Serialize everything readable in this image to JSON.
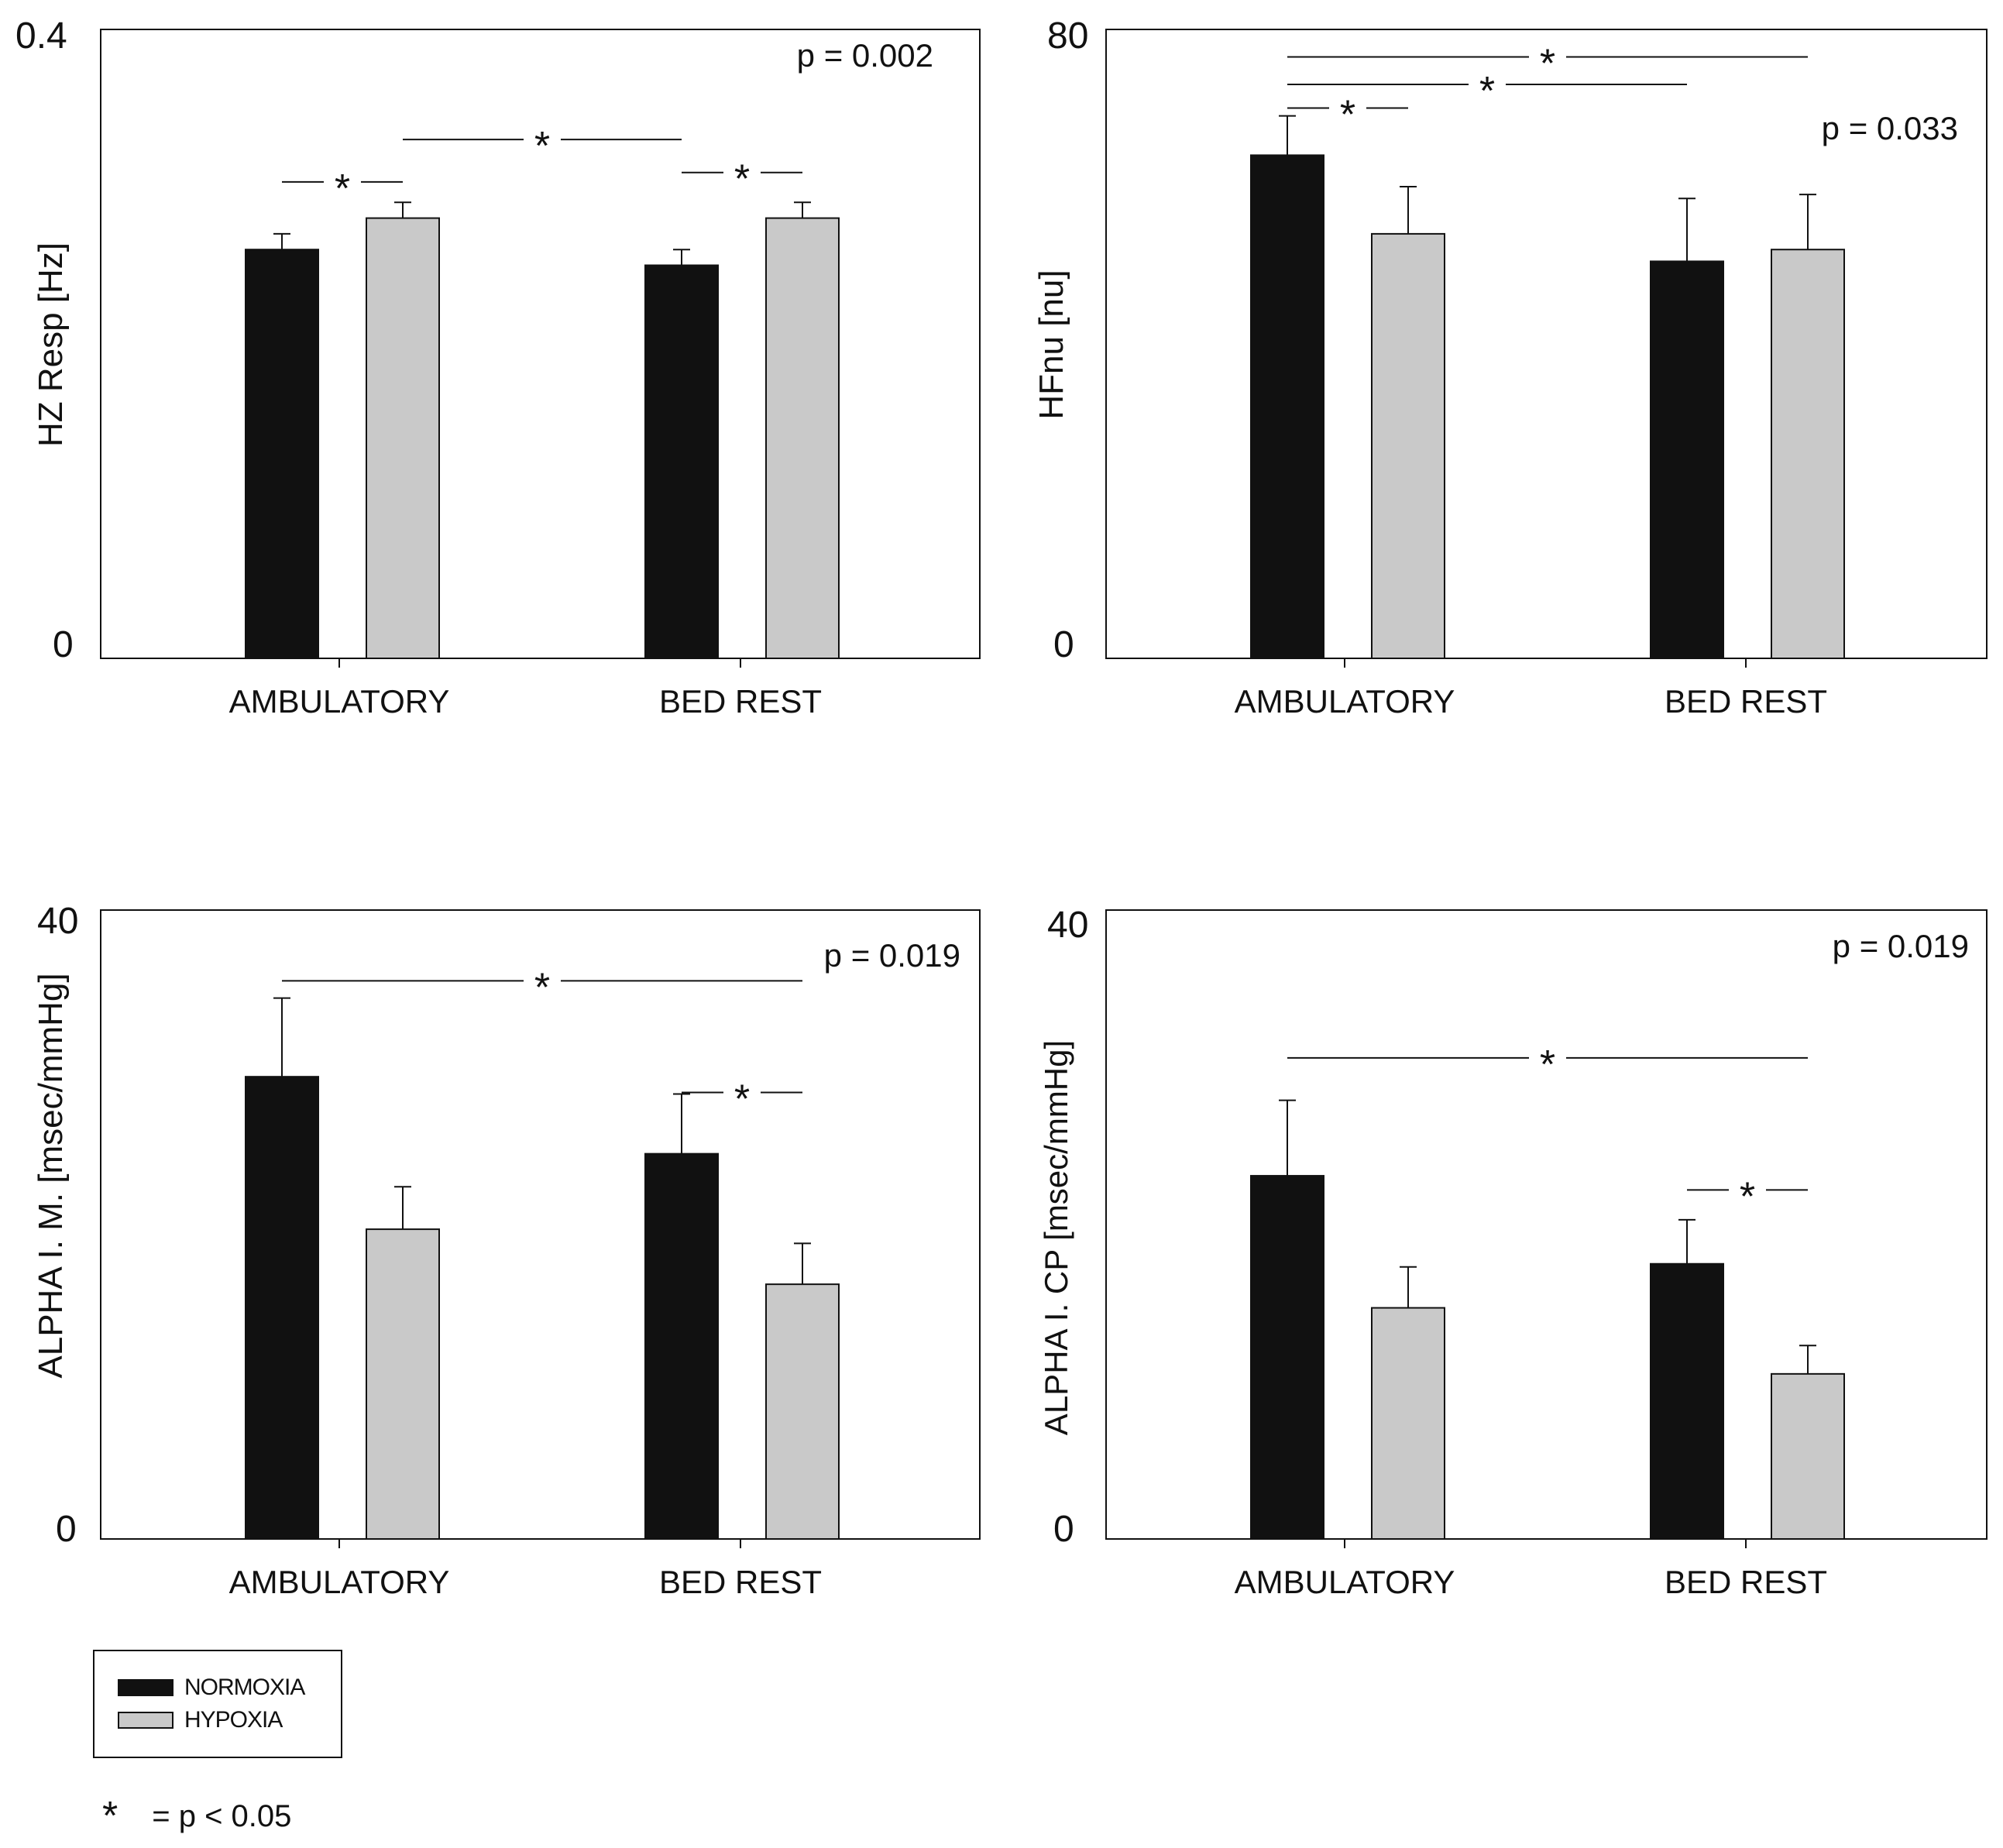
{
  "colors": {
    "normoxia": "#111111",
    "hypoxia": "#c9c9c9",
    "axis": "#111111"
  },
  "legend": {
    "items": [
      {
        "label": "NORMOXIA",
        "color": "#111111"
      },
      {
        "label": "HYPOXIA",
        "color": "#c9c9c9"
      }
    ]
  },
  "footnote": {
    "symbol": "*",
    "text": "= p < 0.05"
  },
  "chart_data": [
    {
      "type": "bar",
      "ylabel": "HZ Resp [Hz]",
      "ylim": [
        0,
        0.4
      ],
      "ytick_labels": [
        "0",
        "0.4"
      ],
      "categories": [
        "AMBULATORY",
        "BED REST"
      ],
      "series": [
        {
          "name": "NORMOXIA",
          "values": [
            0.26,
            0.25
          ],
          "errors": [
            0.01,
            0.01
          ]
        },
        {
          "name": "HYPOXIA",
          "values": [
            0.28,
            0.28
          ],
          "errors": [
            0.01,
            0.01
          ]
        }
      ],
      "pvalue": "p = 0.002",
      "significance": [
        {
          "from": [
            0,
            0
          ],
          "to": [
            0,
            1
          ],
          "level": 0.303,
          "label": "*"
        },
        {
          "from": [
            0,
            1
          ],
          "to": [
            1,
            0
          ],
          "level": 0.33,
          "label": "*"
        },
        {
          "from": [
            1,
            0
          ],
          "to": [
            1,
            1
          ],
          "level": 0.309,
          "label": "*"
        }
      ]
    },
    {
      "type": "bar",
      "ylabel": "HFnu [nu]",
      "ylim": [
        0,
        80
      ],
      "ytick_labels": [
        "0",
        "80"
      ],
      "categories": [
        "AMBULATORY",
        "BED REST"
      ],
      "series": [
        {
          "name": "NORMOXIA",
          "values": [
            64,
            50.5
          ],
          "errors": [
            5,
            8
          ]
        },
        {
          "name": "HYPOXIA",
          "values": [
            54,
            52
          ],
          "errors": [
            6,
            7
          ]
        }
      ],
      "pvalue": "p = 0.033",
      "significance": [
        {
          "from": [
            0,
            0
          ],
          "to": [
            0,
            1
          ],
          "level": 70,
          "label": "*"
        },
        {
          "from": [
            0,
            0
          ],
          "to": [
            1,
            0
          ],
          "level": 73,
          "label": "*"
        },
        {
          "from": [
            0,
            0
          ],
          "to": [
            1,
            1
          ],
          "level": 76.5,
          "label": "*"
        }
      ]
    },
    {
      "type": "bar",
      "ylabel": "ALPHA I. M. [msec/mmHg]",
      "ylim": [
        0,
        40
      ],
      "ytick_labels": [
        "0",
        "40"
      ],
      "categories": [
        "AMBULATORY",
        "BED REST"
      ],
      "series": [
        {
          "name": "NORMOXIA",
          "values": [
            29.4,
            24.5
          ],
          "errors": [
            5,
            3.8
          ]
        },
        {
          "name": "HYPOXIA",
          "values": [
            19.7,
            16.2
          ],
          "errors": [
            2.7,
            2.6
          ]
        }
      ],
      "pvalue": "p = 0.019",
      "significance": [
        {
          "from": [
            0,
            0
          ],
          "to": [
            1,
            1
          ],
          "level": 35.5,
          "label": "*"
        },
        {
          "from": [
            1,
            0
          ],
          "to": [
            1,
            1
          ],
          "level": 28.4,
          "label": "*"
        }
      ]
    },
    {
      "type": "bar",
      "ylabel": "ALPHA I. CP [msec/mmHg]",
      "ylim": [
        0,
        40
      ],
      "ytick_labels": [
        "0",
        "40"
      ],
      "categories": [
        "AMBULATORY",
        "BED REST"
      ],
      "series": [
        {
          "name": "NORMOXIA",
          "values": [
            23.1,
            17.5
          ],
          "errors": [
            4.8,
            2.8
          ]
        },
        {
          "name": "HYPOXIA",
          "values": [
            14.7,
            10.5
          ],
          "errors": [
            2.6,
            1.8
          ]
        }
      ],
      "pvalue": "p = 0.019",
      "significance": [
        {
          "from": [
            0,
            0
          ],
          "to": [
            1,
            1
          ],
          "level": 30.6,
          "label": "*"
        },
        {
          "from": [
            1,
            0
          ],
          "to": [
            1,
            1
          ],
          "level": 22.2,
          "label": "*"
        }
      ]
    }
  ]
}
